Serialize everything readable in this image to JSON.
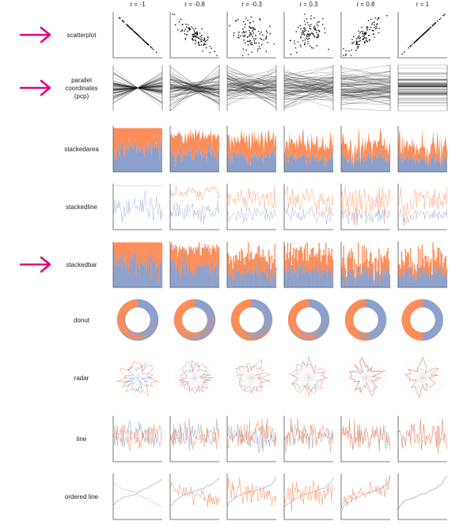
{
  "figure": {
    "columns": [
      "r = -1",
      "r = -0.8",
      "r = -0.3",
      "r = 0.3",
      "r = 0.8",
      "r = 1"
    ],
    "rows": [
      {
        "id": "scatterplot",
        "lines": [
          "scatterplot"
        ],
        "arrow": true
      },
      {
        "id": "pcp",
        "lines": [
          "parallel",
          "coordinates",
          "(pcp)"
        ],
        "arrow": true
      },
      {
        "id": "stackedarea",
        "lines": [
          "stackedarea"
        ],
        "arrow": false
      },
      {
        "id": "stackedline",
        "lines": [
          "stackedline"
        ],
        "arrow": false
      },
      {
        "id": "stackedbar",
        "lines": [
          "stackedbar"
        ],
        "arrow": true
      },
      {
        "id": "donut",
        "lines": [
          "donut"
        ],
        "arrow": false
      },
      {
        "id": "radar",
        "lines": [
          "radar"
        ],
        "arrow": false
      },
      {
        "id": "line",
        "lines": [
          "line"
        ],
        "arrow": false
      },
      {
        "id": "ordered-line",
        "lines": [
          "ordered line"
        ],
        "arrow": false
      }
    ],
    "colors": {
      "series_a": "#fc8d59",
      "series_b": "#8da0cb",
      "ink": "#111111",
      "axis": "#555555",
      "arrow": "#e6007e"
    }
  },
  "chart_data": {
    "type": "table",
    "correlations": [
      -1,
      -0.8,
      -0.3,
      0.3,
      0.8,
      1
    ],
    "chart_types": [
      "scatterplot",
      "parallel coordinates (pcp)",
      "stackedarea",
      "stackedline",
      "stackedbar",
      "donut",
      "radar",
      "line",
      "ordered line"
    ],
    "highlighted_rows": [
      "scatterplot",
      "parallel coordinates (pcp)",
      "stackedbar"
    ]
  }
}
